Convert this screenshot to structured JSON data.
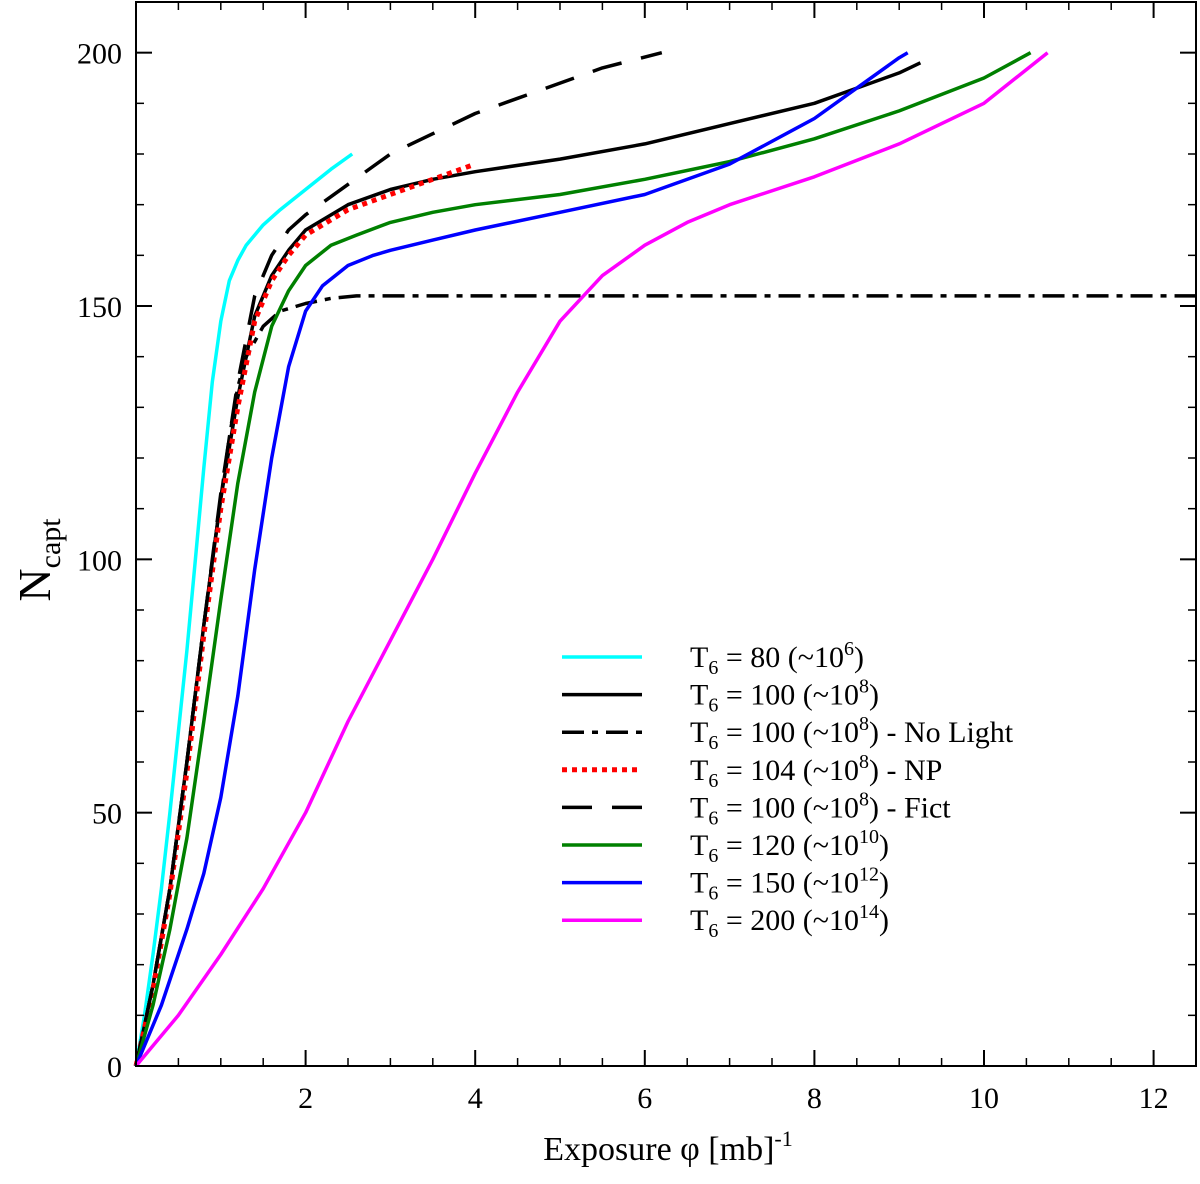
{
  "chart_data": {
    "type": "line",
    "xlabel": {
      "main": "Exposure φ [mb]",
      "sup": "-1"
    },
    "ylabel": {
      "main": "N",
      "sub": "capt"
    },
    "xlim": [
      0,
      12.5
    ],
    "ylim": [
      0,
      210
    ],
    "xticks": [
      2,
      4,
      6,
      8,
      10,
      12
    ],
    "xtick_labels": [
      "2",
      "4",
      "6",
      "8",
      "10",
      "12"
    ],
    "yticks": [
      0,
      50,
      100,
      150,
      200
    ],
    "ytick_labels": [
      "0",
      "50",
      "100",
      "150",
      "200"
    ],
    "x_minor_step": 0.5,
    "y_minor_step": 10,
    "grid": false,
    "legend_position": "bottom-right",
    "series": [
      {
        "name": "T6 = 80 (~10^6)",
        "legend": {
          "pre": "T",
          "sub": "6",
          "mid": " = 80 (~10",
          "sup": "6",
          "post": ")"
        },
        "color": "#00ffff",
        "dash": "solid",
        "x": [
          0,
          0.1,
          0.2,
          0.3,
          0.4,
          0.5,
          0.6,
          0.7,
          0.8,
          0.9,
          1.0,
          1.1,
          1.2,
          1.3,
          1.5,
          1.7,
          2.0,
          2.3,
          2.55
        ],
        "y": [
          0,
          10,
          22,
          35,
          50,
          66,
          82,
          100,
          118,
          135,
          147,
          155,
          159,
          162,
          166,
          169,
          173,
          177,
          180
        ]
      },
      {
        "name": "T6 = 100 (~10^8)",
        "legend": {
          "pre": "T",
          "sub": "6",
          "mid": " = 100 (~10",
          "sup": "8",
          "post": ")"
        },
        "color": "#000000",
        "dash": "solid",
        "x": [
          0,
          0.2,
          0.4,
          0.6,
          0.8,
          1.0,
          1.2,
          1.4,
          1.6,
          1.8,
          2.0,
          2.5,
          3.0,
          3.5,
          4.0,
          5.0,
          6.0,
          7.0,
          8.0,
          8.5,
          9.0,
          9.25
        ],
        "y": [
          0,
          16,
          35,
          60,
          87,
          112,
          132,
          148,
          156,
          161,
          165,
          170,
          173,
          175,
          176.5,
          179,
          182,
          186,
          190,
          193,
          196,
          198
        ]
      },
      {
        "name": "T6 = 100 (~10^8) - No Light",
        "legend": {
          "pre": "T",
          "sub": "6",
          "mid": " = 100 (~10",
          "sup": "8",
          "post": ") - No Light"
        },
        "color": "#000000",
        "dash": "dashdot",
        "x": [
          0,
          0.2,
          0.4,
          0.6,
          0.8,
          1.0,
          1.1,
          1.2,
          1.3,
          1.5,
          1.7,
          2.0,
          2.3,
          2.6,
          3.0,
          4.0,
          6.0,
          8.0,
          10.0,
          12.5
        ],
        "y": [
          0,
          16,
          35,
          60,
          87,
          112,
          124,
          134,
          140,
          146,
          149,
          150.5,
          151.5,
          152,
          152,
          152,
          152,
          152,
          152,
          152
        ]
      },
      {
        "name": "T6 = 104 (~10^8) - NP",
        "legend": {
          "pre": "T",
          "sub": "6",
          "mid": " = 104 (~10",
          "sup": "8",
          "post": ") - NP"
        },
        "color": "#ff0000",
        "dash": "dotted",
        "x": [
          0,
          0.2,
          0.4,
          0.6,
          0.8,
          1.0,
          1.2,
          1.4,
          1.6,
          1.8,
          2.0,
          2.5,
          3.0,
          3.5,
          4.0
        ],
        "y": [
          0,
          15,
          34,
          58,
          85,
          110,
          130,
          147,
          155,
          160,
          164,
          169,
          172,
          175,
          178
        ]
      },
      {
        "name": "T6 = 100 (~10^8) - Fict",
        "legend": {
          "pre": "T",
          "sub": "6",
          "mid": " = 100 (~10",
          "sup": "8",
          "post": ") - Fict"
        },
        "color": "#000000",
        "dash": "longdash",
        "x": [
          0,
          0.2,
          0.4,
          0.6,
          0.8,
          1.0,
          1.2,
          1.4,
          1.6,
          1.8,
          2.0,
          2.5,
          3.0,
          3.5,
          4.0,
          4.5,
          5.0,
          5.5,
          6.2
        ],
        "y": [
          0,
          16,
          35,
          60,
          87,
          113,
          135,
          152,
          160,
          165,
          168,
          174,
          180,
          184,
          188,
          191,
          194,
          197,
          200
        ]
      },
      {
        "name": "T6 = 120 (~10^10)",
        "legend": {
          "pre": "T",
          "sub": "6",
          "mid": " = 120 (~10",
          "sup": "10",
          "post": ")"
        },
        "color": "#008000",
        "dash": "solid",
        "x": [
          0,
          0.2,
          0.4,
          0.6,
          0.8,
          1.0,
          1.2,
          1.4,
          1.6,
          1.8,
          2.0,
          2.3,
          2.6,
          3.0,
          3.5,
          4.0,
          5.0,
          6.0,
          7.0,
          8.0,
          9.0,
          10.0,
          10.55
        ],
        "y": [
          0,
          12,
          27,
          45,
          68,
          92,
          115,
          133,
          146,
          153,
          158,
          162,
          164,
          166.5,
          168.5,
          170,
          172,
          175,
          178.5,
          183,
          188.5,
          195,
          200
        ]
      },
      {
        "name": "T6 = 150 (~10^12)",
        "legend": {
          "pre": "T",
          "sub": "6",
          "mid": " = 150 (~10",
          "sup": "12",
          "post": ")"
        },
        "color": "#0000ff",
        "dash": "solid",
        "x": [
          0,
          0.3,
          0.6,
          0.8,
          1.0,
          1.2,
          1.4,
          1.6,
          1.8,
          2.0,
          2.2,
          2.5,
          2.8,
          3.0,
          3.5,
          4.0,
          5.0,
          6.0,
          7.0,
          8.0,
          8.5,
          9.0,
          9.1
        ],
        "y": [
          0,
          12,
          27,
          38,
          53,
          73,
          98,
          120,
          138,
          149,
          154,
          158,
          160,
          161,
          163,
          165,
          168.5,
          172,
          178,
          187,
          193,
          199,
          200
        ]
      },
      {
        "name": "T6 = 200 (~10^14)",
        "legend": {
          "pre": "T",
          "sub": "6",
          "mid": " = 200 (~10",
          "sup": "14",
          "post": ")"
        },
        "color": "#ff00ff",
        "dash": "solid",
        "x": [
          0,
          0.5,
          1.0,
          1.5,
          2.0,
          2.5,
          3.0,
          3.5,
          4.0,
          4.5,
          5.0,
          5.5,
          6.0,
          6.5,
          7.0,
          8.0,
          9.0,
          10.0,
          10.75
        ],
        "y": [
          0,
          10,
          22,
          35,
          50,
          68,
          84,
          100,
          117,
          133,
          147,
          156,
          162,
          166.5,
          170,
          175.5,
          182,
          190,
          200
        ]
      }
    ]
  }
}
